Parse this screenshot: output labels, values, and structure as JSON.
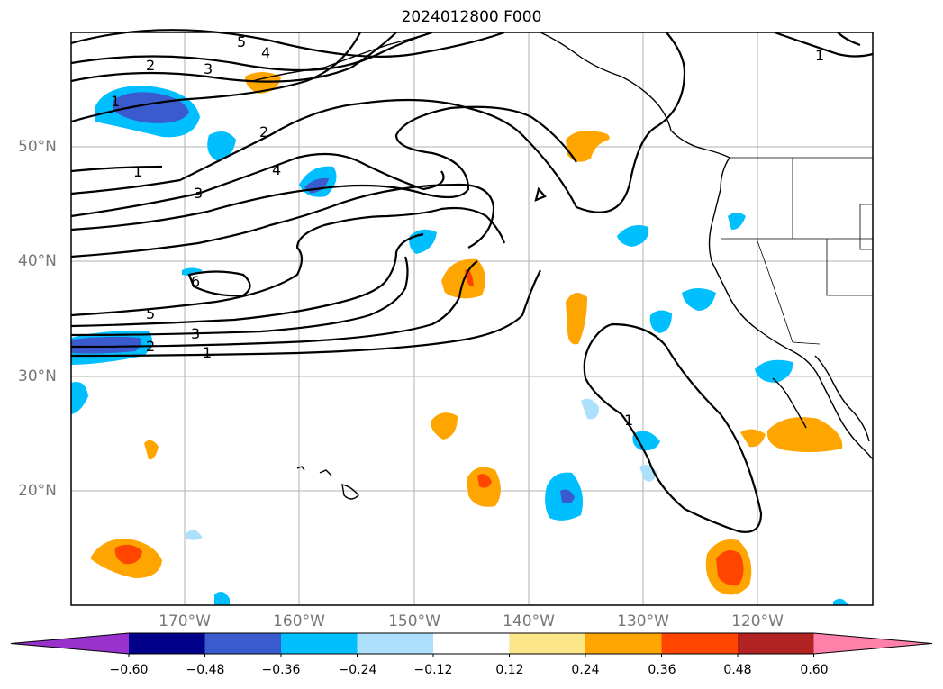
{
  "title": "2024012800 F000",
  "lon_labels": [
    "170°W",
    "160°W",
    "150°W",
    "140°W",
    "130°W",
    "120°W"
  ],
  "lat_labels": [
    "50°N",
    "40°N",
    "30°N",
    "20°N"
  ],
  "colorbar": {
    "ticks": [
      "−0.60",
      "−0.48",
      "−0.36",
      "−0.24",
      "−0.12",
      "0.12",
      "0.24",
      "0.36",
      "0.48",
      "0.60"
    ],
    "colors": [
      "#9932cc",
      "#00008b",
      "#3a5bcd",
      "#00bfff",
      "#ade0fa",
      "#ffffff",
      "#fbe68a",
      "#ffa500",
      "#ff4500",
      "#b22222",
      "#ff80a8"
    ]
  },
  "contour_labels": [
    "5",
    "4",
    "3",
    "2",
    "1",
    "2",
    "1",
    "3",
    "4",
    "6",
    "5",
    "3",
    "2",
    "1",
    "1",
    "1"
  ]
}
